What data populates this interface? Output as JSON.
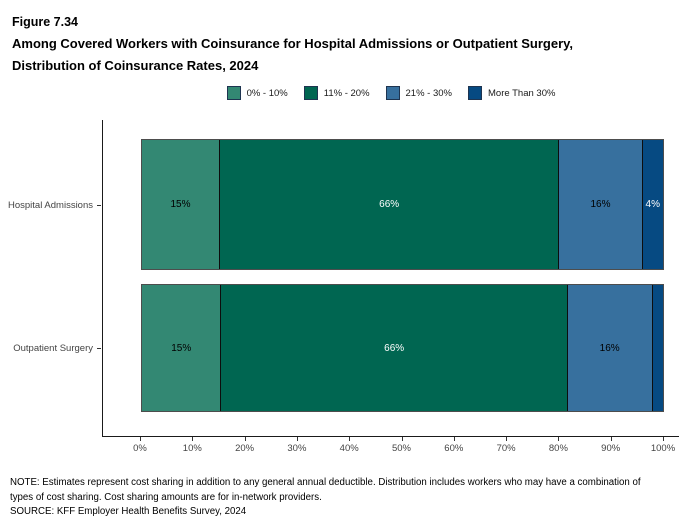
{
  "header": {
    "figure_label": "Figure 7.34",
    "title_line1": "Among Covered Workers with Coinsurance for Hospital Admissions or Outpatient Surgery,",
    "title_line2": "Distribution of Coinsurance Rates, 2024"
  },
  "legend": {
    "items": [
      {
        "label": "0% - 10%",
        "color": "#338873"
      },
      {
        "label": "11% - 20%",
        "color": "#006651"
      },
      {
        "label": "21% - 30%",
        "color": "#37709E"
      },
      {
        "label": "More Than 30%",
        "color": "#064A82"
      }
    ]
  },
  "chart_data": {
    "type": "bar",
    "orientation": "horizontal-stacked",
    "title": "Among Covered Workers with Coinsurance for Hospital Admissions or Outpatient Surgery, Distribution of Coinsurance Rates, 2024",
    "categories": [
      "Hospital Admissions",
      "Outpatient Surgery"
    ],
    "series": [
      {
        "name": "0% - 10%",
        "color": "#338873",
        "label_color": "#000000",
        "values": [
          15,
          15
        ]
      },
      {
        "name": "11% - 20%",
        "color": "#006651",
        "label_color": "#ffffff",
        "values": [
          66,
          66
        ]
      },
      {
        "name": "21% - 30%",
        "color": "#37709E",
        "label_color": "#000000",
        "values": [
          16,
          16
        ]
      },
      {
        "name": "More Than 30%",
        "color": "#064A82",
        "label_color": "#ffffff",
        "values": [
          4,
          2
        ]
      }
    ],
    "segment_labels": [
      [
        "15%",
        "66%",
        "16%",
        "4%"
      ],
      [
        "15%",
        "66%",
        "16%",
        ""
      ]
    ],
    "x_axis": {
      "ticks": [
        "0%",
        "10%",
        "20%",
        "30%",
        "40%",
        "50%",
        "60%",
        "70%",
        "80%",
        "90%",
        "100%"
      ],
      "range": [
        0,
        100
      ]
    },
    "grid": false,
    "legend_position": "top"
  },
  "notes": {
    "lines": [
      "NOTE: Estimates represent cost sharing in addition to any general annual deductible. Distribution includes workers who may have a combination of",
      "types of cost sharing. Cost sharing amounts are for in-network providers.",
      "SOURCE: KFF Employer Health Benefits Survey, 2024"
    ]
  }
}
